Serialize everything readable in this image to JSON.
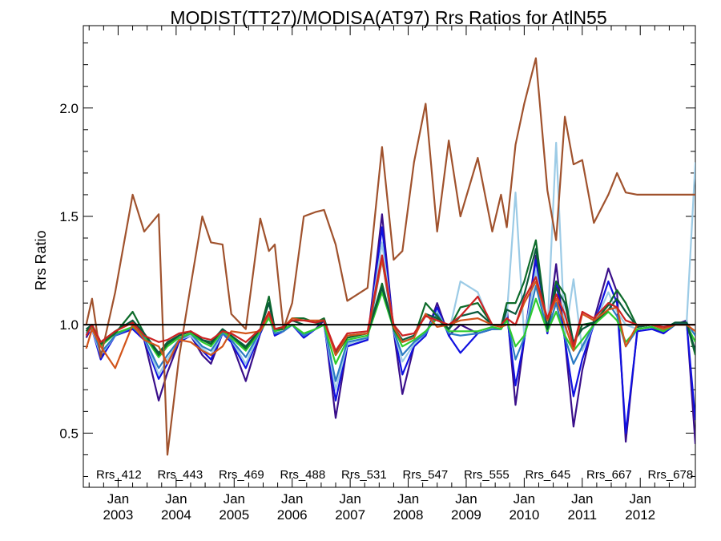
{
  "chart_data": {
    "type": "line",
    "title": "MODIST(TT27)/MODISA(AT97)  Rrs Ratios for AtlN55",
    "ylabel": "Rrs Ratio",
    "xlabel": "",
    "ylim": [
      0.25,
      2.38
    ],
    "xlim": [
      2002.4,
      2012.95
    ],
    "yticks": [
      "0.5",
      "1.0",
      "1.5",
      "2.0"
    ],
    "xticks": [
      {
        "year": "2003",
        "month": "Jan"
      },
      {
        "year": "2004",
        "month": "Jan"
      },
      {
        "year": "2005",
        "month": "Jan"
      },
      {
        "year": "2006",
        "month": "Jan"
      },
      {
        "year": "2007",
        "month": "Jan"
      },
      {
        "year": "2008",
        "month": "Jan"
      },
      {
        "year": "2009",
        "month": "Jan"
      },
      {
        "year": "2010",
        "month": "Jan"
      },
      {
        "year": "2011",
        "month": "Jan"
      },
      {
        "year": "2012",
        "month": "Jan"
      }
    ],
    "reference_line": 1.0,
    "grid": false,
    "legend_placement": "bottom",
    "x": [
      2002.45,
      2002.55,
      2002.7,
      2002.95,
      2003.25,
      2003.45,
      2003.7,
      2003.85,
      2004.05,
      2004.25,
      2004.45,
      2004.6,
      2004.8,
      2004.95,
      2005.2,
      2005.45,
      2005.6,
      2005.7,
      2005.85,
      2006.0,
      2006.2,
      2006.4,
      2006.55,
      2006.75,
      2006.95,
      2007.3,
      2007.55,
      2007.75,
      2007.9,
      2008.1,
      2008.3,
      2008.5,
      2008.7,
      2008.9,
      2009.2,
      2009.45,
      2009.6,
      2009.7,
      2009.85,
      2010.0,
      2010.2,
      2010.4,
      2010.55,
      2010.7,
      2010.85,
      2011.0,
      2011.2,
      2011.45,
      2011.6,
      2011.75,
      2011.95,
      2012.2,
      2012.4,
      2012.6,
      2012.8,
      2012.95
    ],
    "series": [
      {
        "name": "Rrs_412",
        "color": "#3a0f8a",
        "values": [
          0.94,
          0.99,
          0.85,
          0.95,
          0.98,
          0.93,
          0.65,
          0.78,
          0.92,
          0.95,
          0.86,
          0.82,
          0.96,
          0.92,
          0.74,
          0.96,
          1.05,
          0.95,
          0.97,
          1.0,
          0.94,
          0.98,
          1.02,
          0.57,
          0.9,
          0.93,
          1.51,
          0.97,
          0.68,
          0.9,
          0.95,
          1.1,
          0.95,
          1.0,
          0.96,
          0.98,
          0.98,
          1.08,
          0.63,
          0.93,
          1.32,
          0.96,
          1.28,
          0.93,
          0.53,
          0.79,
          1.02,
          1.26,
          1.15,
          0.46,
          0.98,
          0.99,
          0.96,
          1.0,
          1.02,
          0.45
        ]
      },
      {
        "name": "Rrs_443",
        "color": "#1010e0",
        "values": [
          0.95,
          0.98,
          0.84,
          0.95,
          0.98,
          0.93,
          0.75,
          0.82,
          0.92,
          0.95,
          0.88,
          0.84,
          0.96,
          0.92,
          0.8,
          0.96,
          1.05,
          0.95,
          0.97,
          1.0,
          0.94,
          0.98,
          1.0,
          0.65,
          0.9,
          0.93,
          1.45,
          0.97,
          0.77,
          0.9,
          0.95,
          1.08,
          0.95,
          0.87,
          0.96,
          0.98,
          0.98,
          1.05,
          0.72,
          0.93,
          1.3,
          0.96,
          1.2,
          0.93,
          0.67,
          0.84,
          1.0,
          1.2,
          1.1,
          0.5,
          0.97,
          0.98,
          0.96,
          1.0,
          1.01,
          0.56
        ]
      },
      {
        "name": "Rrs_469",
        "color": "#9ccbe6",
        "values": [
          0.96,
          0.98,
          0.86,
          0.95,
          0.99,
          0.94,
          0.77,
          0.84,
          0.93,
          0.95,
          0.89,
          0.86,
          0.96,
          0.93,
          0.82,
          0.97,
          1.04,
          0.96,
          0.97,
          1.0,
          0.95,
          0.98,
          1.0,
          0.7,
          0.91,
          0.94,
          1.38,
          0.97,
          0.83,
          0.91,
          0.96,
          1.06,
          0.96,
          1.2,
          1.15,
          0.98,
          0.98,
          1.04,
          1.61,
          0.94,
          1.25,
          0.97,
          1.84,
          0.94,
          1.21,
          0.88,
          1.0,
          1.15,
          1.06,
          1.0,
          0.98,
          0.99,
          0.97,
          1.0,
          1.01,
          1.75
        ]
      },
      {
        "name": "Rrs_488",
        "color": "#2b7bc4",
        "values": [
          0.96,
          0.99,
          0.87,
          0.95,
          0.99,
          0.94,
          0.8,
          0.86,
          0.93,
          0.96,
          0.9,
          0.88,
          0.96,
          0.93,
          0.85,
          0.97,
          1.04,
          0.96,
          0.97,
          1.0,
          0.95,
          0.98,
          1.0,
          0.74,
          0.92,
          0.94,
          1.3,
          0.97,
          0.86,
          0.92,
          0.96,
          1.05,
          0.96,
          0.95,
          0.96,
          0.98,
          0.98,
          1.03,
          0.84,
          0.94,
          1.18,
          0.97,
          1.1,
          0.94,
          0.82,
          0.9,
          1.0,
          1.1,
          1.04,
          0.9,
          0.98,
          0.99,
          0.97,
          1.0,
          1.01,
          0.95
        ]
      },
      {
        "name": "Rrs_531",
        "color": "#2ecc2e",
        "values": [
          0.97,
          0.99,
          0.9,
          0.96,
          0.99,
          0.95,
          0.85,
          0.9,
          0.94,
          0.96,
          0.92,
          0.9,
          0.97,
          0.94,
          0.88,
          0.97,
          1.03,
          0.97,
          0.98,
          1.0,
          0.96,
          0.98,
          1.0,
          0.82,
          0.93,
          0.95,
          1.15,
          0.98,
          0.9,
          0.93,
          0.97,
          1.03,
          0.97,
          0.97,
          0.97,
          0.99,
          0.98,
          1.02,
          0.9,
          0.95,
          1.12,
          0.97,
          1.06,
          0.95,
          0.88,
          0.93,
          1.0,
          1.06,
          1.02,
          0.92,
          0.98,
          0.99,
          0.97,
          1.0,
          1.0,
          0.92
        ]
      },
      {
        "name": "Rrs_547",
        "color": "#0d6b2a",
        "values": [
          0.97,
          1.0,
          0.91,
          0.96,
          1.06,
          0.96,
          0.86,
          0.91,
          0.95,
          0.97,
          0.93,
          0.91,
          0.98,
          0.95,
          0.89,
          0.98,
          1.13,
          0.98,
          0.98,
          1.03,
          1.03,
          1.01,
          1.03,
          0.86,
          0.94,
          0.96,
          1.19,
          0.98,
          0.92,
          0.94,
          1.1,
          1.04,
          0.98,
          1.08,
          1.1,
          1.0,
          0.99,
          1.1,
          1.1,
          1.2,
          1.39,
          0.98,
          1.2,
          1.14,
          0.91,
          1.0,
          1.01,
          1.09,
          1.16,
          1.1,
          0.99,
          1.0,
          0.98,
          1.01,
          1.01,
          0.86
        ]
      },
      {
        "name": "Rrs_555",
        "color": "#0a5a3c",
        "values": [
          0.98,
          1.0,
          0.92,
          0.97,
          1.02,
          0.96,
          0.87,
          0.92,
          0.95,
          0.97,
          0.93,
          0.92,
          0.98,
          0.95,
          0.9,
          0.98,
          1.1,
          0.98,
          0.99,
          1.02,
          1.0,
          1.0,
          1.02,
          0.87,
          0.95,
          0.96,
          1.17,
          0.99,
          0.93,
          0.95,
          1.05,
          1.03,
          0.98,
          1.04,
          1.06,
          1.0,
          0.99,
          1.07,
          1.05,
          1.14,
          1.35,
          0.98,
          1.17,
          1.1,
          0.92,
          0.98,
          1.01,
          1.07,
          1.12,
          1.06,
          0.99,
          1.0,
          0.98,
          1.01,
          1.01,
          0.88
        ]
      },
      {
        "name": "Rrs_645",
        "color": "#a0522d",
        "values": [
          1.0,
          1.12,
          0.85,
          1.15,
          1.6,
          1.43,
          1.51,
          0.4,
          0.85,
          1.18,
          1.5,
          1.38,
          1.37,
          1.05,
          0.98,
          1.49,
          1.34,
          1.37,
          0.98,
          1.1,
          1.5,
          1.52,
          1.53,
          1.37,
          1.11,
          1.17,
          1.82,
          1.3,
          1.34,
          1.75,
          2.02,
          1.43,
          1.85,
          1.5,
          1.77,
          1.43,
          1.6,
          1.45,
          1.83,
          2.02,
          2.23,
          1.62,
          1.39,
          1.96,
          1.74,
          1.76,
          1.47,
          1.6,
          1.7,
          1.61,
          1.6,
          1.6,
          1.6,
          1.6,
          1.6,
          1.6
        ]
      },
      {
        "name": "Rrs_667",
        "color": "#d2541a",
        "values": [
          0.89,
          0.98,
          0.9,
          0.8,
          1.0,
          0.93,
          0.9,
          0.82,
          0.93,
          0.92,
          0.88,
          0.86,
          0.9,
          0.97,
          0.96,
          0.97,
          1.05,
          0.98,
          0.99,
          1.03,
          1.02,
          1.02,
          1.02,
          0.86,
          0.95,
          0.96,
          1.3,
          0.99,
          0.92,
          0.94,
          1.05,
          0.99,
          1.0,
          1.02,
          1.03,
          1.0,
          0.99,
          1.0,
          1.0,
          1.1,
          1.2,
          1.02,
          1.12,
          1.0,
          0.88,
          1.05,
          1.02,
          1.07,
          1.08,
          0.9,
          1.0,
          1.0,
          0.98,
          1.0,
          1.0,
          0.97
        ]
      },
      {
        "name": "Rrs_678",
        "color": "#cc2222",
        "values": [
          0.95,
          1.0,
          0.92,
          0.97,
          1.01,
          0.95,
          0.92,
          0.93,
          0.96,
          0.97,
          0.94,
          0.93,
          0.97,
          0.96,
          0.92,
          0.98,
          1.06,
          0.98,
          0.99,
          1.02,
          1.02,
          1.01,
          1.02,
          0.88,
          0.96,
          0.97,
          1.32,
          1.0,
          0.95,
          0.96,
          1.04,
          1.02,
          1.0,
          1.04,
          1.13,
          1.0,
          1.0,
          1.03,
          1.0,
          1.12,
          1.22,
          1.03,
          1.14,
          1.05,
          0.9,
          1.06,
          1.03,
          1.1,
          1.08,
          1.02,
          1.0,
          1.0,
          0.99,
          1.0,
          1.0,
          1.0
        ]
      }
    ]
  }
}
